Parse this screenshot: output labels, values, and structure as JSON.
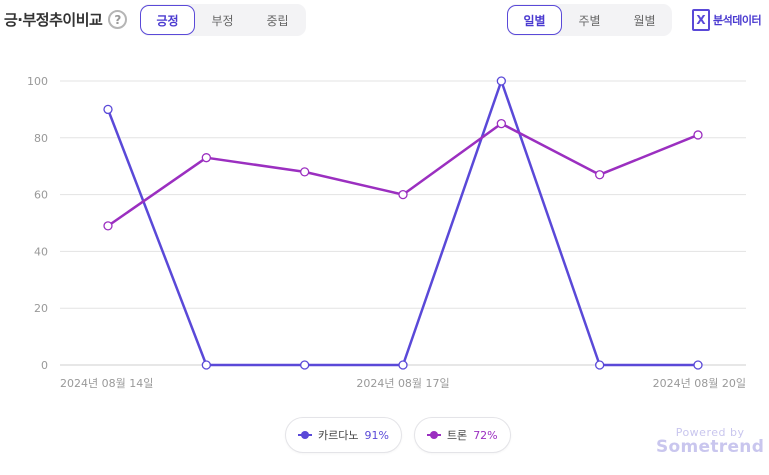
{
  "header": {
    "title": "긍·부정추이비교",
    "help_icon": "?",
    "sentiment_tabs": [
      "긍정",
      "부정",
      "중립"
    ],
    "sentiment_active": 0,
    "period_tabs": [
      "일별",
      "주별",
      "월별"
    ],
    "period_active": 0,
    "export_icon": "X",
    "export_label": "분석데이터"
  },
  "colors": {
    "series1": "#5a49d8",
    "series2": "#9b2fc0",
    "grid": "#e3e3e3",
    "tick": "#999999"
  },
  "chart_data": {
    "type": "line",
    "x": [
      "2024-08-14",
      "2024-08-15",
      "2024-08-16",
      "2024-08-17",
      "2024-08-18",
      "2024-08-19",
      "2024-08-20"
    ],
    "x_tick_labels": [
      "2024년 08월 14일",
      "2024년 08월 17일",
      "2024년 08월 20일"
    ],
    "y_ticks": [
      "100",
      "80",
      "60",
      "40",
      "20",
      "0"
    ],
    "ylim": [
      0,
      100
    ],
    "grid": true,
    "legend_position": "bottom",
    "series": [
      {
        "name": "카르다노",
        "percent": "91%",
        "values": [
          90,
          0,
          0,
          0,
          100,
          0,
          0
        ]
      },
      {
        "name": "트론",
        "percent": "72%",
        "values": [
          49,
          73,
          68,
          60,
          85,
          67,
          81
        ]
      }
    ]
  },
  "footer": {
    "powered_by": "Powered by",
    "brand": "Sometrend"
  }
}
